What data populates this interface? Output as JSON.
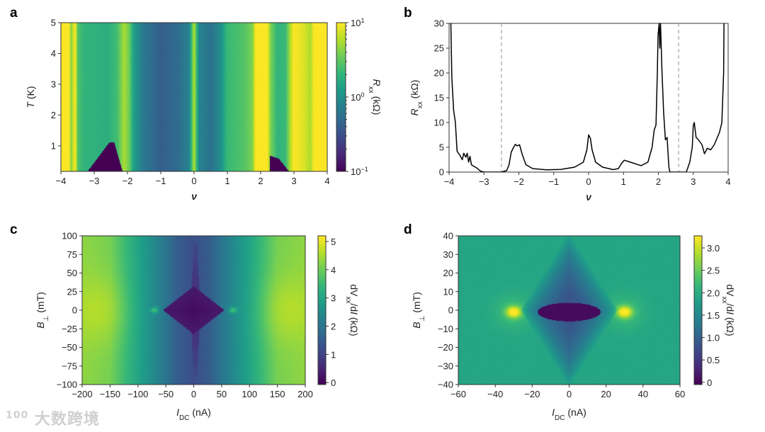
{
  "watermark": {
    "logo": "100",
    "text": "大数跨境"
  },
  "chart_data": [
    {
      "panel": "a",
      "type": "heatmap",
      "xlabel": "ν",
      "ylabel_italic": "T",
      "ylabel_rest": " (K)",
      "xlim": [
        -4,
        4
      ],
      "ylim": [
        0.17,
        5
      ],
      "xticks": [
        -4,
        -3,
        -2,
        -1,
        0,
        1,
        2,
        3,
        4
      ],
      "xticklabels": [
        "−4",
        "−3",
        "−2",
        "−1",
        "0",
        "1",
        "2",
        "3",
        "4"
      ],
      "yticks": [
        1,
        2,
        3,
        4,
        5
      ],
      "yticklabels": [
        "1",
        "2",
        "3",
        "4",
        "5"
      ],
      "colorbar": {
        "label_main": "R",
        "label_sub": "xx",
        "label_rest": " (kΩ)",
        "scale": "log",
        "range": [
          0.1,
          10
        ],
        "ticks": [
          {
            "value": 10,
            "base": "10",
            "exp": "1"
          },
          {
            "value": 1,
            "base": "10",
            "exp": "0"
          },
          {
            "value": 0.1,
            "base": "10",
            "exp": "−1"
          }
        ]
      },
      "profile_log10_R_vs_nu": [
        [
          -4,
          1
        ],
        [
          -3.75,
          1
        ],
        [
          -3.7,
          0.6
        ],
        [
          -3.62,
          0.9
        ],
        [
          -3.55,
          0.95
        ],
        [
          -3.5,
          0.45
        ],
        [
          -3.3,
          0.3
        ],
        [
          -2.6,
          0.25
        ],
        [
          -2.3,
          0.4
        ],
        [
          -2.1,
          0.75
        ],
        [
          -1.95,
          0.55
        ],
        [
          -1.8,
          0.1
        ],
        [
          -1.5,
          -0.2
        ],
        [
          -1,
          -0.4
        ],
        [
          -0.5,
          -0.3
        ],
        [
          -0.15,
          -0.1
        ],
        [
          -0.05,
          0.5
        ],
        [
          0,
          0.8
        ],
        [
          0.05,
          0.5
        ],
        [
          0.15,
          -0.1
        ],
        [
          0.5,
          -0.25
        ],
        [
          0.8,
          0.0
        ],
        [
          1,
          0.35
        ],
        [
          1.5,
          0.45
        ],
        [
          1.75,
          0.6
        ],
        [
          1.85,
          1
        ],
        [
          2.2,
          1
        ],
        [
          2.3,
          0.6
        ],
        [
          2.5,
          0.3
        ],
        [
          2.75,
          0.35
        ],
        [
          2.9,
          0.8
        ],
        [
          3.0,
          1
        ],
        [
          3.3,
          0.9
        ],
        [
          3.5,
          0.75
        ],
        [
          3.6,
          1
        ],
        [
          4,
          1
        ]
      ],
      "superconducting_regions_nu_T": [
        [
          [
            -3.2,
            0.17
          ],
          [
            -2.55,
            1.1
          ],
          [
            -2.4,
            1.12
          ],
          [
            -2.15,
            0.17
          ]
        ],
        [
          [
            2.28,
            0.17
          ],
          [
            2.28,
            0.68
          ],
          [
            2.55,
            0.58
          ],
          [
            2.85,
            0.17
          ]
        ]
      ]
    },
    {
      "panel": "b",
      "type": "line",
      "xlabel": "ν",
      "ylabel_main": "R",
      "ylabel_sub": "xx",
      "ylabel_rest": " (kΩ)",
      "xlim": [
        -4,
        4
      ],
      "ylim": [
        0,
        30
      ],
      "xticks": [
        -4,
        -3,
        -2,
        -1,
        0,
        1,
        2,
        3,
        4
      ],
      "xticklabels": [
        "−4",
        "−3",
        "−2",
        "−1",
        "0",
        "1",
        "2",
        "3",
        "4"
      ],
      "yticks": [
        0,
        5,
        10,
        15,
        20,
        25,
        30
      ],
      "yticklabels": [
        "0",
        "5",
        "10",
        "15",
        "20",
        "25",
        "30"
      ],
      "dashed_vlines": [
        -2.5,
        2.58
      ],
      "line_color": "#000000",
      "dash_color": "#aaaaaa",
      "series": [
        {
          "name": "Rxx",
          "points": [
            [
              -3.95,
              30
            ],
            [
              -3.92,
              19
            ],
            [
              -3.87,
              12.5
            ],
            [
              -3.82,
              10
            ],
            [
              -3.77,
              4.2
            ],
            [
              -3.7,
              3.5
            ],
            [
              -3.62,
              2.5
            ],
            [
              -3.58,
              3.8
            ],
            [
              -3.52,
              3
            ],
            [
              -3.48,
              3.8
            ],
            [
              -3.44,
              2
            ],
            [
              -3.4,
              3.2
            ],
            [
              -3.36,
              1.5
            ],
            [
              -3.3,
              1.2
            ],
            [
              -3.2,
              0.8
            ],
            [
              -3.1,
              0.2
            ],
            [
              -3.0,
              0
            ],
            [
              -2.5,
              0
            ],
            [
              -2.35,
              0.3
            ],
            [
              -2.28,
              1.5
            ],
            [
              -2.22,
              4
            ],
            [
              -2.15,
              5
            ],
            [
              -2.1,
              5.6
            ],
            [
              -2.05,
              5.3
            ],
            [
              -1.98,
              5.5
            ],
            [
              -1.9,
              3.5
            ],
            [
              -1.8,
              1.5
            ],
            [
              -1.6,
              0.7
            ],
            [
              -1.2,
              0.45
            ],
            [
              -0.8,
              0.55
            ],
            [
              -0.4,
              1
            ],
            [
              -0.15,
              2
            ],
            [
              -0.05,
              4.5
            ],
            [
              0.0,
              7.5
            ],
            [
              0.05,
              6.8
            ],
            [
              0.1,
              4.5
            ],
            [
              0.2,
              2
            ],
            [
              0.4,
              1
            ],
            [
              0.7,
              0.5
            ],
            [
              0.85,
              0.7
            ],
            [
              0.95,
              1.8
            ],
            [
              1.02,
              2.4
            ],
            [
              1.2,
              2
            ],
            [
              1.5,
              1.3
            ],
            [
              1.7,
              2
            ],
            [
              1.82,
              5
            ],
            [
              1.88,
              8.5
            ],
            [
              1.93,
              9.5
            ],
            [
              1.97,
              20
            ],
            [
              1.99,
              27.5
            ],
            [
              2.02,
              30
            ],
            [
              2.04,
              25
            ],
            [
              2.06,
              30
            ],
            [
              2.1,
              21
            ],
            [
              2.15,
              12
            ],
            [
              2.2,
              6.5
            ],
            [
              2.25,
              7
            ],
            [
              2.3,
              1
            ],
            [
              2.33,
              0
            ],
            [
              2.8,
              0
            ],
            [
              2.9,
              2
            ],
            [
              2.97,
              5
            ],
            [
              3.0,
              9.5
            ],
            [
              3.03,
              10
            ],
            [
              3.08,
              7
            ],
            [
              3.15,
              6.5
            ],
            [
              3.25,
              5.5
            ],
            [
              3.32,
              3.7
            ],
            [
              3.4,
              4.8
            ],
            [
              3.5,
              4.5
            ],
            [
              3.6,
              5.5
            ],
            [
              3.75,
              8
            ],
            [
              3.82,
              10
            ],
            [
              3.87,
              20
            ],
            [
              3.88,
              30
            ]
          ]
        }
      ]
    },
    {
      "panel": "c",
      "type": "heatmap",
      "xlabel_main": "I",
      "xlabel_sub": "DC",
      "xlabel_rest": " (nA)",
      "ylabel_main": "B",
      "ylabel_sub": "⊥",
      "ylabel_rest": " (mT)",
      "xlim": [
        -200,
        200
      ],
      "ylim": [
        -100,
        100
      ],
      "xticks": [
        -200,
        -150,
        -100,
        -50,
        0,
        50,
        100,
        150,
        200
      ],
      "xticklabels": [
        "−200",
        "−150",
        "−100",
        "−50",
        "0",
        "50",
        "100",
        "150",
        "200"
      ],
      "yticks": [
        -100,
        -75,
        -50,
        -25,
        0,
        25,
        50,
        75,
        100
      ],
      "yticklabels": [
        "−100",
        "−75",
        "−50",
        "−25",
        "0",
        "25",
        "50",
        "75",
        "100"
      ],
      "colorbar": {
        "label_pre": "dV",
        "label_sub": "xx",
        "label_mid": "/d",
        "label_i": "I",
        "label_rest": " (kΩ)",
        "scale": "linear",
        "range": [
          -0.07,
          5.2
        ],
        "ticks": [
          {
            "value": 0,
            "label": "0"
          },
          {
            "value": 1,
            "label": "1"
          },
          {
            "value": 2,
            "label": "2"
          },
          {
            "value": 3,
            "label": "3"
          },
          {
            "value": 4,
            "label": "4"
          },
          {
            "value": 5,
            "label": "5"
          }
        ]
      },
      "background_vs_abs_I": [
        [
          0,
          1.2
        ],
        [
          30,
          1.5
        ],
        [
          50,
          2.0
        ],
        [
          100,
          3.0
        ],
        [
          150,
          4.1
        ],
        [
          200,
          4.3
        ]
      ],
      "zero_field_peak": {
        "I": 175,
        "value": 4.7
      },
      "diamond": {
        "half_width_I": 55,
        "half_height_B": 32,
        "value": 0.1
      },
      "spike": {
        "half_height_B": 90,
        "value": 0.5
      },
      "side_spots": {
        "I": 70,
        "value": 3.0
      }
    },
    {
      "panel": "d",
      "type": "heatmap",
      "xlabel_main": "I",
      "xlabel_sub": "DC",
      "xlabel_rest": " (nA)",
      "ylabel_main": "B",
      "ylabel_sub": "⊥",
      "ylabel_rest": " (mT)",
      "xlim": [
        -60,
        60
      ],
      "ylim": [
        -40,
        40
      ],
      "xticks": [
        -60,
        -40,
        -20,
        0,
        20,
        40,
        60
      ],
      "xticklabels": [
        "−60",
        "−40",
        "−20",
        "0",
        "20",
        "40",
        "60"
      ],
      "yticks": [
        -40,
        -30,
        -20,
        -10,
        0,
        10,
        20,
        30,
        40
      ],
      "yticklabels": [
        "−40",
        "−30",
        "−20",
        "−10",
        "0",
        "10",
        "20",
        "30",
        "40"
      ],
      "colorbar": {
        "label_pre": "dV",
        "label_sub": "xx",
        "label_mid": "/d",
        "label_i": "I",
        "label_rest": " (kΩ)",
        "scale": "linear",
        "range": [
          -0.05,
          3.27
        ],
        "ticks": [
          {
            "value": 0,
            "label": "0"
          },
          {
            "value": 0.5,
            "label": "0.5"
          },
          {
            "value": 1,
            "label": "1.0"
          },
          {
            "value": 1.5,
            "label": "1.5"
          },
          {
            "value": 2,
            "label": "2.0"
          },
          {
            "value": 2.5,
            "label": "2.5"
          },
          {
            "value": 3,
            "label": "3.0"
          }
        ]
      },
      "background": 1.9,
      "diamond": {
        "half_width_I": 26,
        "half_height_B": 42,
        "value": 0.8
      },
      "core": {
        "half_width_I": 17,
        "half_height_B": 5,
        "value": 0.05
      },
      "bright_spots": {
        "I": 30,
        "B": -1,
        "value": 3.2
      }
    }
  ]
}
